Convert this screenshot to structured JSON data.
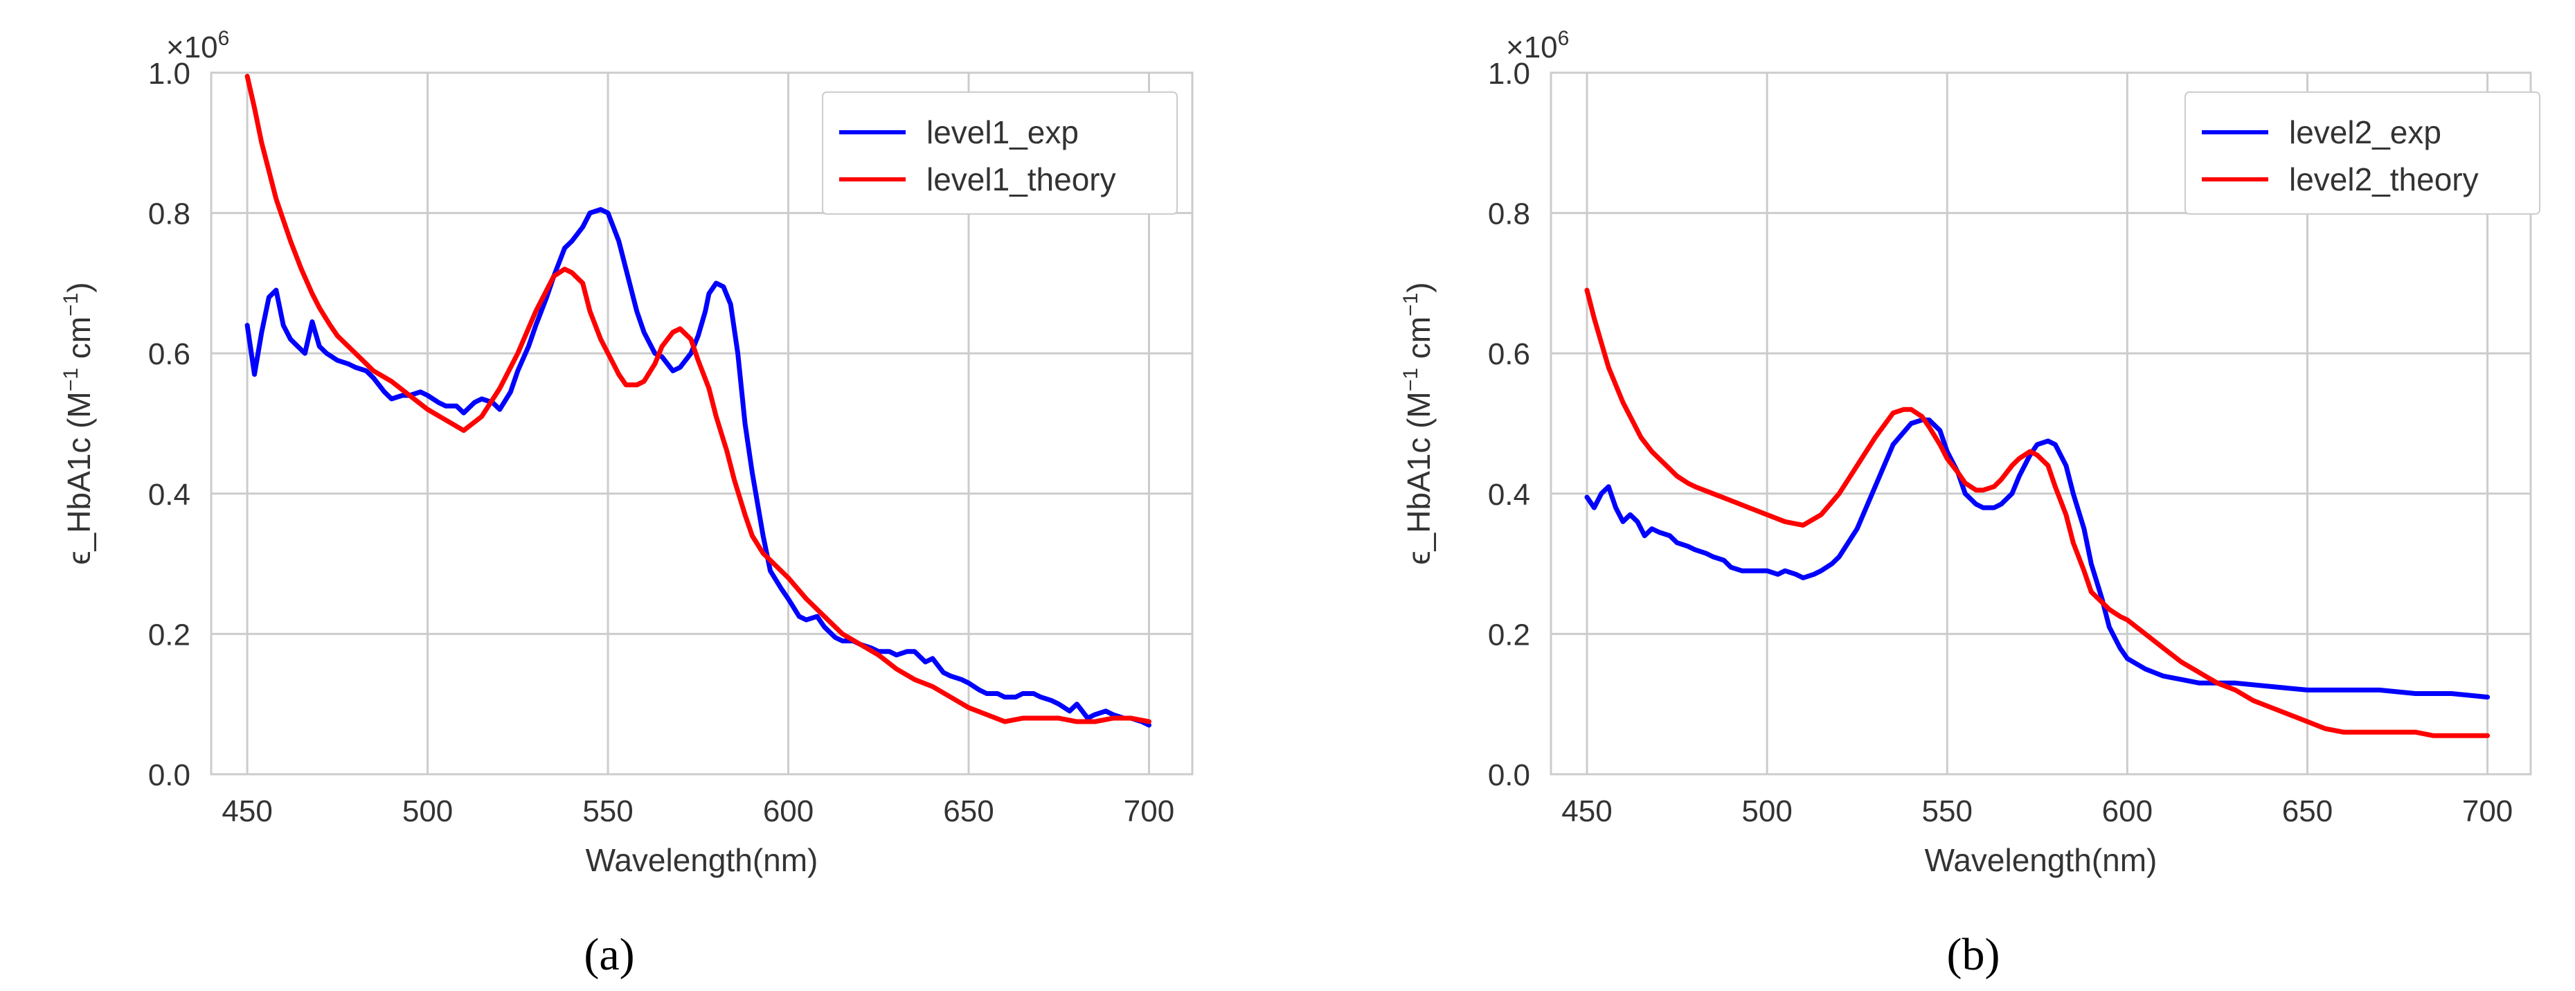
{
  "chart_data": [
    {
      "type": "line",
      "caption": "(a)",
      "xlabel": "Wavelength(nm)",
      "ylabel": "ϵ_HbA1c (M",
      "ylabel_sup1": "−1",
      "ylabel_mid": " cm",
      "ylabel_sup2": "−1",
      "ylabel_end": ")",
      "multiplier": "×10",
      "multiplier_exp": "6",
      "xlim": [
        440,
        712
      ],
      "ylim": [
        0,
        1.0
      ],
      "xticks": [
        450,
        500,
        550,
        600,
        650,
        700
      ],
      "yticks": [
        "0.0",
        "0.2",
        "0.4",
        "0.6",
        "0.8",
        "1.0"
      ],
      "grid": true,
      "legend_position": "top-right",
      "series": [
        {
          "name": "level1_exp",
          "color": "#0000ff",
          "x": [
            450,
            452,
            454,
            456,
            458,
            460,
            462,
            464,
            466,
            468,
            470,
            472,
            475,
            478,
            480,
            483,
            485,
            488,
            490,
            493,
            495,
            498,
            500,
            503,
            505,
            508,
            510,
            513,
            515,
            518,
            520,
            523,
            525,
            528,
            530,
            533,
            535,
            538,
            540,
            543,
            545,
            548,
            550,
            553,
            555,
            558,
            560,
            563,
            565,
            568,
            570,
            573,
            575,
            577,
            578,
            580,
            582,
            584,
            586,
            588,
            590,
            593,
            595,
            598,
            600,
            603,
            605,
            608,
            610,
            613,
            615,
            618,
            620,
            623,
            625,
            628,
            630,
            633,
            635,
            638,
            640,
            643,
            645,
            648,
            650,
            653,
            655,
            658,
            660,
            663,
            665,
            668,
            670,
            673,
            675,
            678,
            680,
            683,
            685,
            688,
            690,
            693,
            695,
            698,
            700
          ],
          "y": [
            0.64,
            0.57,
            0.63,
            0.68,
            0.69,
            0.64,
            0.62,
            0.61,
            0.6,
            0.645,
            0.61,
            0.6,
            0.59,
            0.585,
            0.58,
            0.575,
            0.565,
            0.545,
            0.535,
            0.54,
            0.54,
            0.545,
            0.54,
            0.53,
            0.525,
            0.525,
            0.515,
            0.53,
            0.535,
            0.53,
            0.52,
            0.545,
            0.575,
            0.61,
            0.64,
            0.68,
            0.71,
            0.75,
            0.76,
            0.78,
            0.8,
            0.805,
            0.8,
            0.76,
            0.72,
            0.66,
            0.63,
            0.6,
            0.595,
            0.575,
            0.58,
            0.6,
            0.625,
            0.66,
            0.685,
            0.7,
            0.695,
            0.67,
            0.6,
            0.5,
            0.43,
            0.34,
            0.29,
            0.265,
            0.25,
            0.225,
            0.22,
            0.225,
            0.21,
            0.195,
            0.19,
            0.19,
            0.185,
            0.18,
            0.175,
            0.175,
            0.17,
            0.175,
            0.175,
            0.16,
            0.165,
            0.145,
            0.14,
            0.135,
            0.13,
            0.12,
            0.115,
            0.115,
            0.11,
            0.11,
            0.115,
            0.115,
            0.11,
            0.105,
            0.1,
            0.09,
            0.1,
            0.08,
            0.085,
            0.09,
            0.085,
            0.08,
            0.08,
            0.075,
            0.07
          ]
        },
        {
          "name": "level1_theory",
          "color": "#ff0000",
          "x": [
            450,
            452,
            454,
            456,
            458,
            460,
            462,
            465,
            468,
            470,
            473,
            475,
            478,
            480,
            485,
            490,
            495,
            500,
            505,
            510,
            515,
            520,
            525,
            530,
            535,
            538,
            540,
            543,
            545,
            548,
            550,
            553,
            555,
            558,
            560,
            563,
            565,
            568,
            570,
            573,
            575,
            578,
            580,
            583,
            585,
            588,
            590,
            593,
            595,
            598,
            600,
            605,
            610,
            615,
            620,
            625,
            630,
            635,
            640,
            645,
            650,
            655,
            660,
            665,
            670,
            675,
            680,
            685,
            690,
            695,
            700
          ],
          "y": [
            0.995,
            0.95,
            0.9,
            0.86,
            0.82,
            0.79,
            0.76,
            0.72,
            0.685,
            0.665,
            0.64,
            0.625,
            0.61,
            0.6,
            0.575,
            0.56,
            0.54,
            0.52,
            0.505,
            0.49,
            0.51,
            0.55,
            0.6,
            0.66,
            0.71,
            0.72,
            0.715,
            0.7,
            0.66,
            0.62,
            0.6,
            0.57,
            0.555,
            0.555,
            0.56,
            0.585,
            0.61,
            0.63,
            0.635,
            0.62,
            0.59,
            0.55,
            0.51,
            0.46,
            0.42,
            0.37,
            0.34,
            0.315,
            0.305,
            0.29,
            0.28,
            0.25,
            0.225,
            0.2,
            0.185,
            0.17,
            0.15,
            0.135,
            0.125,
            0.11,
            0.095,
            0.085,
            0.075,
            0.08,
            0.08,
            0.08,
            0.075,
            0.075,
            0.08,
            0.08,
            0.075
          ]
        }
      ]
    },
    {
      "type": "line",
      "caption": "(b)",
      "xlabel": "Wavelength(nm)",
      "ylabel": "ϵ_HbA1c (M",
      "ylabel_sup1": "−1",
      "ylabel_mid": " cm",
      "ylabel_sup2": "−1",
      "ylabel_end": ")",
      "multiplier": "×10",
      "multiplier_exp": "6",
      "xlim": [
        440,
        712
      ],
      "ylim": [
        0,
        1.0
      ],
      "xticks": [
        450,
        500,
        550,
        600,
        650,
        700
      ],
      "yticks": [
        "0.0",
        "0.2",
        "0.4",
        "0.6",
        "0.8",
        "1.0"
      ],
      "grid": true,
      "legend_position": "top-right",
      "series": [
        {
          "name": "level2_exp",
          "color": "#0000ff",
          "x": [
            450,
            452,
            454,
            456,
            458,
            460,
            462,
            464,
            466,
            468,
            470,
            473,
            475,
            478,
            480,
            483,
            485,
            488,
            490,
            493,
            495,
            498,
            500,
            503,
            505,
            508,
            510,
            513,
            515,
            518,
            520,
            525,
            530,
            535,
            540,
            543,
            545,
            548,
            550,
            553,
            555,
            558,
            560,
            563,
            565,
            568,
            570,
            573,
            575,
            578,
            580,
            583,
            585,
            588,
            590,
            593,
            595,
            598,
            600,
            605,
            610,
            615,
            620,
            625,
            630,
            640,
            650,
            660,
            670,
            680,
            690,
            700
          ],
          "y": [
            0.395,
            0.38,
            0.4,
            0.41,
            0.38,
            0.36,
            0.37,
            0.36,
            0.34,
            0.35,
            0.345,
            0.34,
            0.33,
            0.325,
            0.32,
            0.315,
            0.31,
            0.305,
            0.295,
            0.29,
            0.29,
            0.29,
            0.29,
            0.285,
            0.29,
            0.285,
            0.28,
            0.285,
            0.29,
            0.3,
            0.31,
            0.35,
            0.41,
            0.47,
            0.5,
            0.505,
            0.505,
            0.49,
            0.46,
            0.43,
            0.4,
            0.385,
            0.38,
            0.38,
            0.385,
            0.4,
            0.425,
            0.455,
            0.47,
            0.475,
            0.47,
            0.44,
            0.4,
            0.35,
            0.3,
            0.25,
            0.21,
            0.18,
            0.165,
            0.15,
            0.14,
            0.135,
            0.13,
            0.13,
            0.13,
            0.125,
            0.12,
            0.12,
            0.12,
            0.115,
            0.115,
            0.11
          ]
        },
        {
          "name": "level2_theory",
          "color": "#ff0000",
          "x": [
            450,
            452,
            454,
            456,
            458,
            460,
            463,
            465,
            468,
            470,
            473,
            475,
            478,
            480,
            485,
            490,
            495,
            500,
            505,
            510,
            515,
            520,
            525,
            530,
            535,
            538,
            540,
            543,
            545,
            548,
            550,
            553,
            555,
            558,
            560,
            563,
            565,
            568,
            570,
            573,
            575,
            578,
            580,
            583,
            585,
            588,
            590,
            593,
            595,
            598,
            600,
            605,
            610,
            615,
            620,
            625,
            630,
            635,
            640,
            645,
            650,
            655,
            660,
            665,
            670,
            675,
            680,
            685,
            690,
            695,
            700
          ],
          "y": [
            0.69,
            0.65,
            0.615,
            0.58,
            0.555,
            0.53,
            0.5,
            0.48,
            0.46,
            0.45,
            0.435,
            0.425,
            0.415,
            0.41,
            0.4,
            0.39,
            0.38,
            0.37,
            0.36,
            0.355,
            0.37,
            0.4,
            0.44,
            0.48,
            0.515,
            0.52,
            0.52,
            0.51,
            0.495,
            0.47,
            0.45,
            0.43,
            0.415,
            0.405,
            0.405,
            0.41,
            0.42,
            0.44,
            0.45,
            0.46,
            0.455,
            0.44,
            0.41,
            0.37,
            0.33,
            0.29,
            0.26,
            0.245,
            0.235,
            0.225,
            0.22,
            0.2,
            0.18,
            0.16,
            0.145,
            0.13,
            0.12,
            0.105,
            0.095,
            0.085,
            0.075,
            0.065,
            0.06,
            0.06,
            0.06,
            0.06,
            0.06,
            0.055,
            0.055,
            0.055,
            0.055
          ]
        }
      ]
    }
  ]
}
